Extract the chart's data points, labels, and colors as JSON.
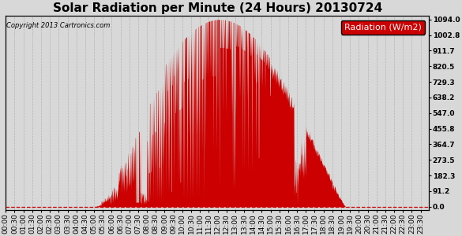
{
  "title": "Solar Radiation per Minute (24 Hours) 20130724",
  "copyright": "Copyright 2013 Cartronics.com",
  "legend_label": "Radiation (W/m2)",
  "background_color": "#d8d8d8",
  "plot_bg_color": "#d8d8d8",
  "bar_color": "#cc0000",
  "dashed_line_color": "#aaaaaa",
  "zero_line_color": "#cc0000",
  "yticks": [
    0.0,
    91.2,
    182.3,
    273.5,
    364.7,
    455.8,
    547.0,
    638.2,
    729.3,
    820.5,
    911.7,
    1002.8,
    1094.0
  ],
  "ymax": 1094.0,
  "ymin": 0.0,
  "total_minutes": 1440,
  "title_fontsize": 11,
  "axis_fontsize": 6.5,
  "legend_fontsize": 8
}
